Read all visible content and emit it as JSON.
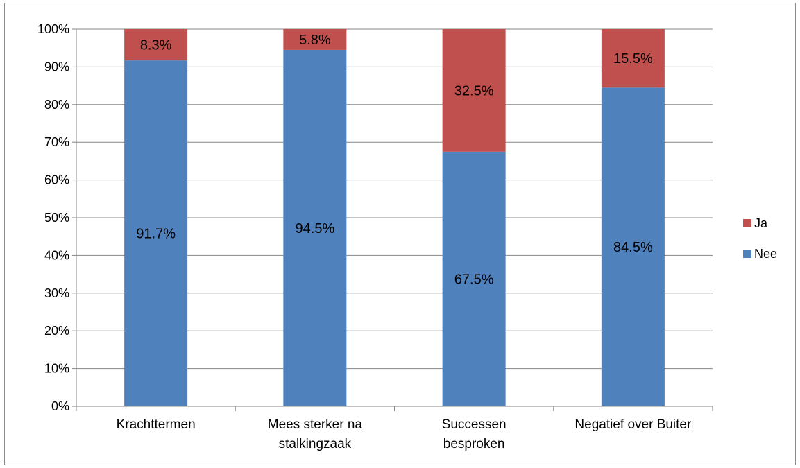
{
  "chart_data": {
    "type": "bar",
    "stacked": true,
    "percent_stacked": true,
    "categories": [
      [
        "Krachttermen"
      ],
      [
        "Mees sterker na",
        "stalkingzaak"
      ],
      [
        "Successen",
        "besproken"
      ],
      [
        "Negatief over Buiter"
      ]
    ],
    "series": [
      {
        "name": "Nee",
        "color": "#4f81bd",
        "values": [
          91.7,
          94.5,
          67.5,
          84.5
        ],
        "labels": [
          "91.7%",
          "94.5%",
          "67.5%",
          "84.5%"
        ]
      },
      {
        "name": "Ja",
        "color": "#c0504d",
        "values": [
          8.3,
          5.8,
          32.5,
          15.5
        ],
        "labels": [
          "8.3%",
          "5.8%",
          "32.5%",
          "15.5%"
        ]
      }
    ],
    "ylim": [
      0,
      100
    ],
    "yticks": [
      "0%",
      "10%",
      "20%",
      "30%",
      "40%",
      "50%",
      "60%",
      "70%",
      "80%",
      "90%",
      "100%"
    ],
    "grid": true,
    "legend_position": "right",
    "legend_order": [
      "Ja",
      "Nee"
    ],
    "gridline_color": "#868686"
  }
}
